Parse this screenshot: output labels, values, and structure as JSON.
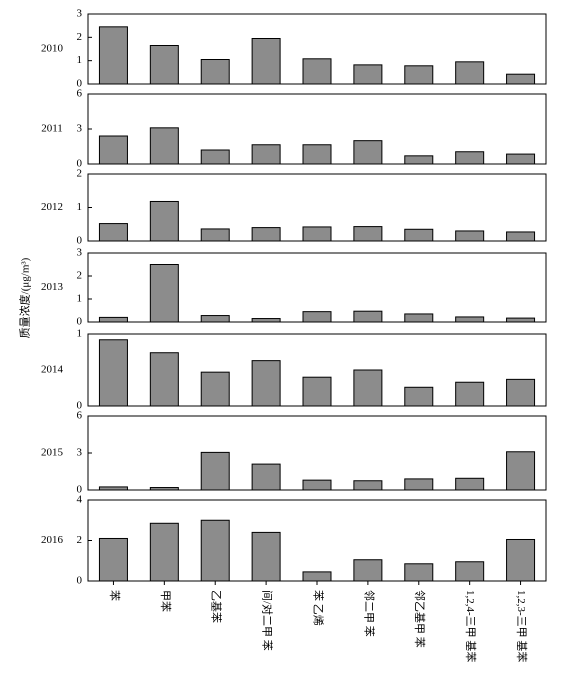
{
  "y_label": "质量浓度/(μg/m³)",
  "categories": [
    "苯",
    "甲苯",
    "乙基苯",
    "间/对二甲 苯",
    "苯 乙烯",
    "邻二甲 苯",
    "邻乙基甲 苯",
    "1,2,4-三甲 基苯",
    "1,2,3-三甲 基苯"
  ],
  "chart_data": [
    {
      "type": "bar",
      "label": "2010",
      "color": "#8c8c8c",
      "values": [
        2.45,
        1.65,
        1.05,
        1.95,
        1.08,
        0.82,
        0.78,
        0.95,
        0.42
      ],
      "ylim": [
        0,
        3
      ],
      "yticks": [
        0,
        1,
        2,
        3
      ]
    },
    {
      "type": "bar",
      "label": "2011",
      "color": "#8c8c8c",
      "values": [
        2.4,
        3.1,
        1.2,
        1.65,
        1.65,
        2.0,
        0.7,
        1.05,
        0.85
      ],
      "ylim": [
        0,
        6
      ],
      "yticks": [
        0,
        3,
        6
      ]
    },
    {
      "type": "bar",
      "label": "2012",
      "color": "#8c8c8c",
      "values": [
        0.52,
        1.18,
        0.36,
        0.4,
        0.42,
        0.43,
        0.35,
        0.3,
        0.27
      ],
      "ylim": [
        0,
        2
      ],
      "yticks": [
        0,
        1,
        2
      ]
    },
    {
      "type": "bar",
      "label": "2013",
      "color": "#8c8c8c",
      "values": [
        0.2,
        2.5,
        0.28,
        0.15,
        0.45,
        0.47,
        0.35,
        0.22,
        0.17
      ],
      "ylim": [
        0,
        3
      ],
      "yticks": [
        0,
        1,
        2,
        3
      ]
    },
    {
      "type": "bar",
      "label": "2014",
      "color": "#8c8c8c",
      "values": [
        0.92,
        0.74,
        0.47,
        0.63,
        0.4,
        0.5,
        0.26,
        0.33,
        0.37
      ],
      "ylim": [
        0,
        1
      ],
      "yticks": [
        0,
        1
      ]
    },
    {
      "type": "bar",
      "label": "2015",
      "color": "#8c8c8c",
      "values": [
        0.25,
        0.2,
        3.05,
        2.1,
        0.8,
        0.75,
        0.9,
        0.95,
        3.1
      ],
      "ylim": [
        0,
        6
      ],
      "yticks": [
        0,
        3,
        6
      ]
    },
    {
      "type": "bar",
      "label": "2016",
      "color": "#8c8c8c",
      "values": [
        2.1,
        2.85,
        3.0,
        2.4,
        0.45,
        1.05,
        0.85,
        0.95,
        2.05
      ],
      "ylim": [
        0,
        4
      ],
      "yticks": [
        0,
        2,
        4
      ]
    }
  ]
}
